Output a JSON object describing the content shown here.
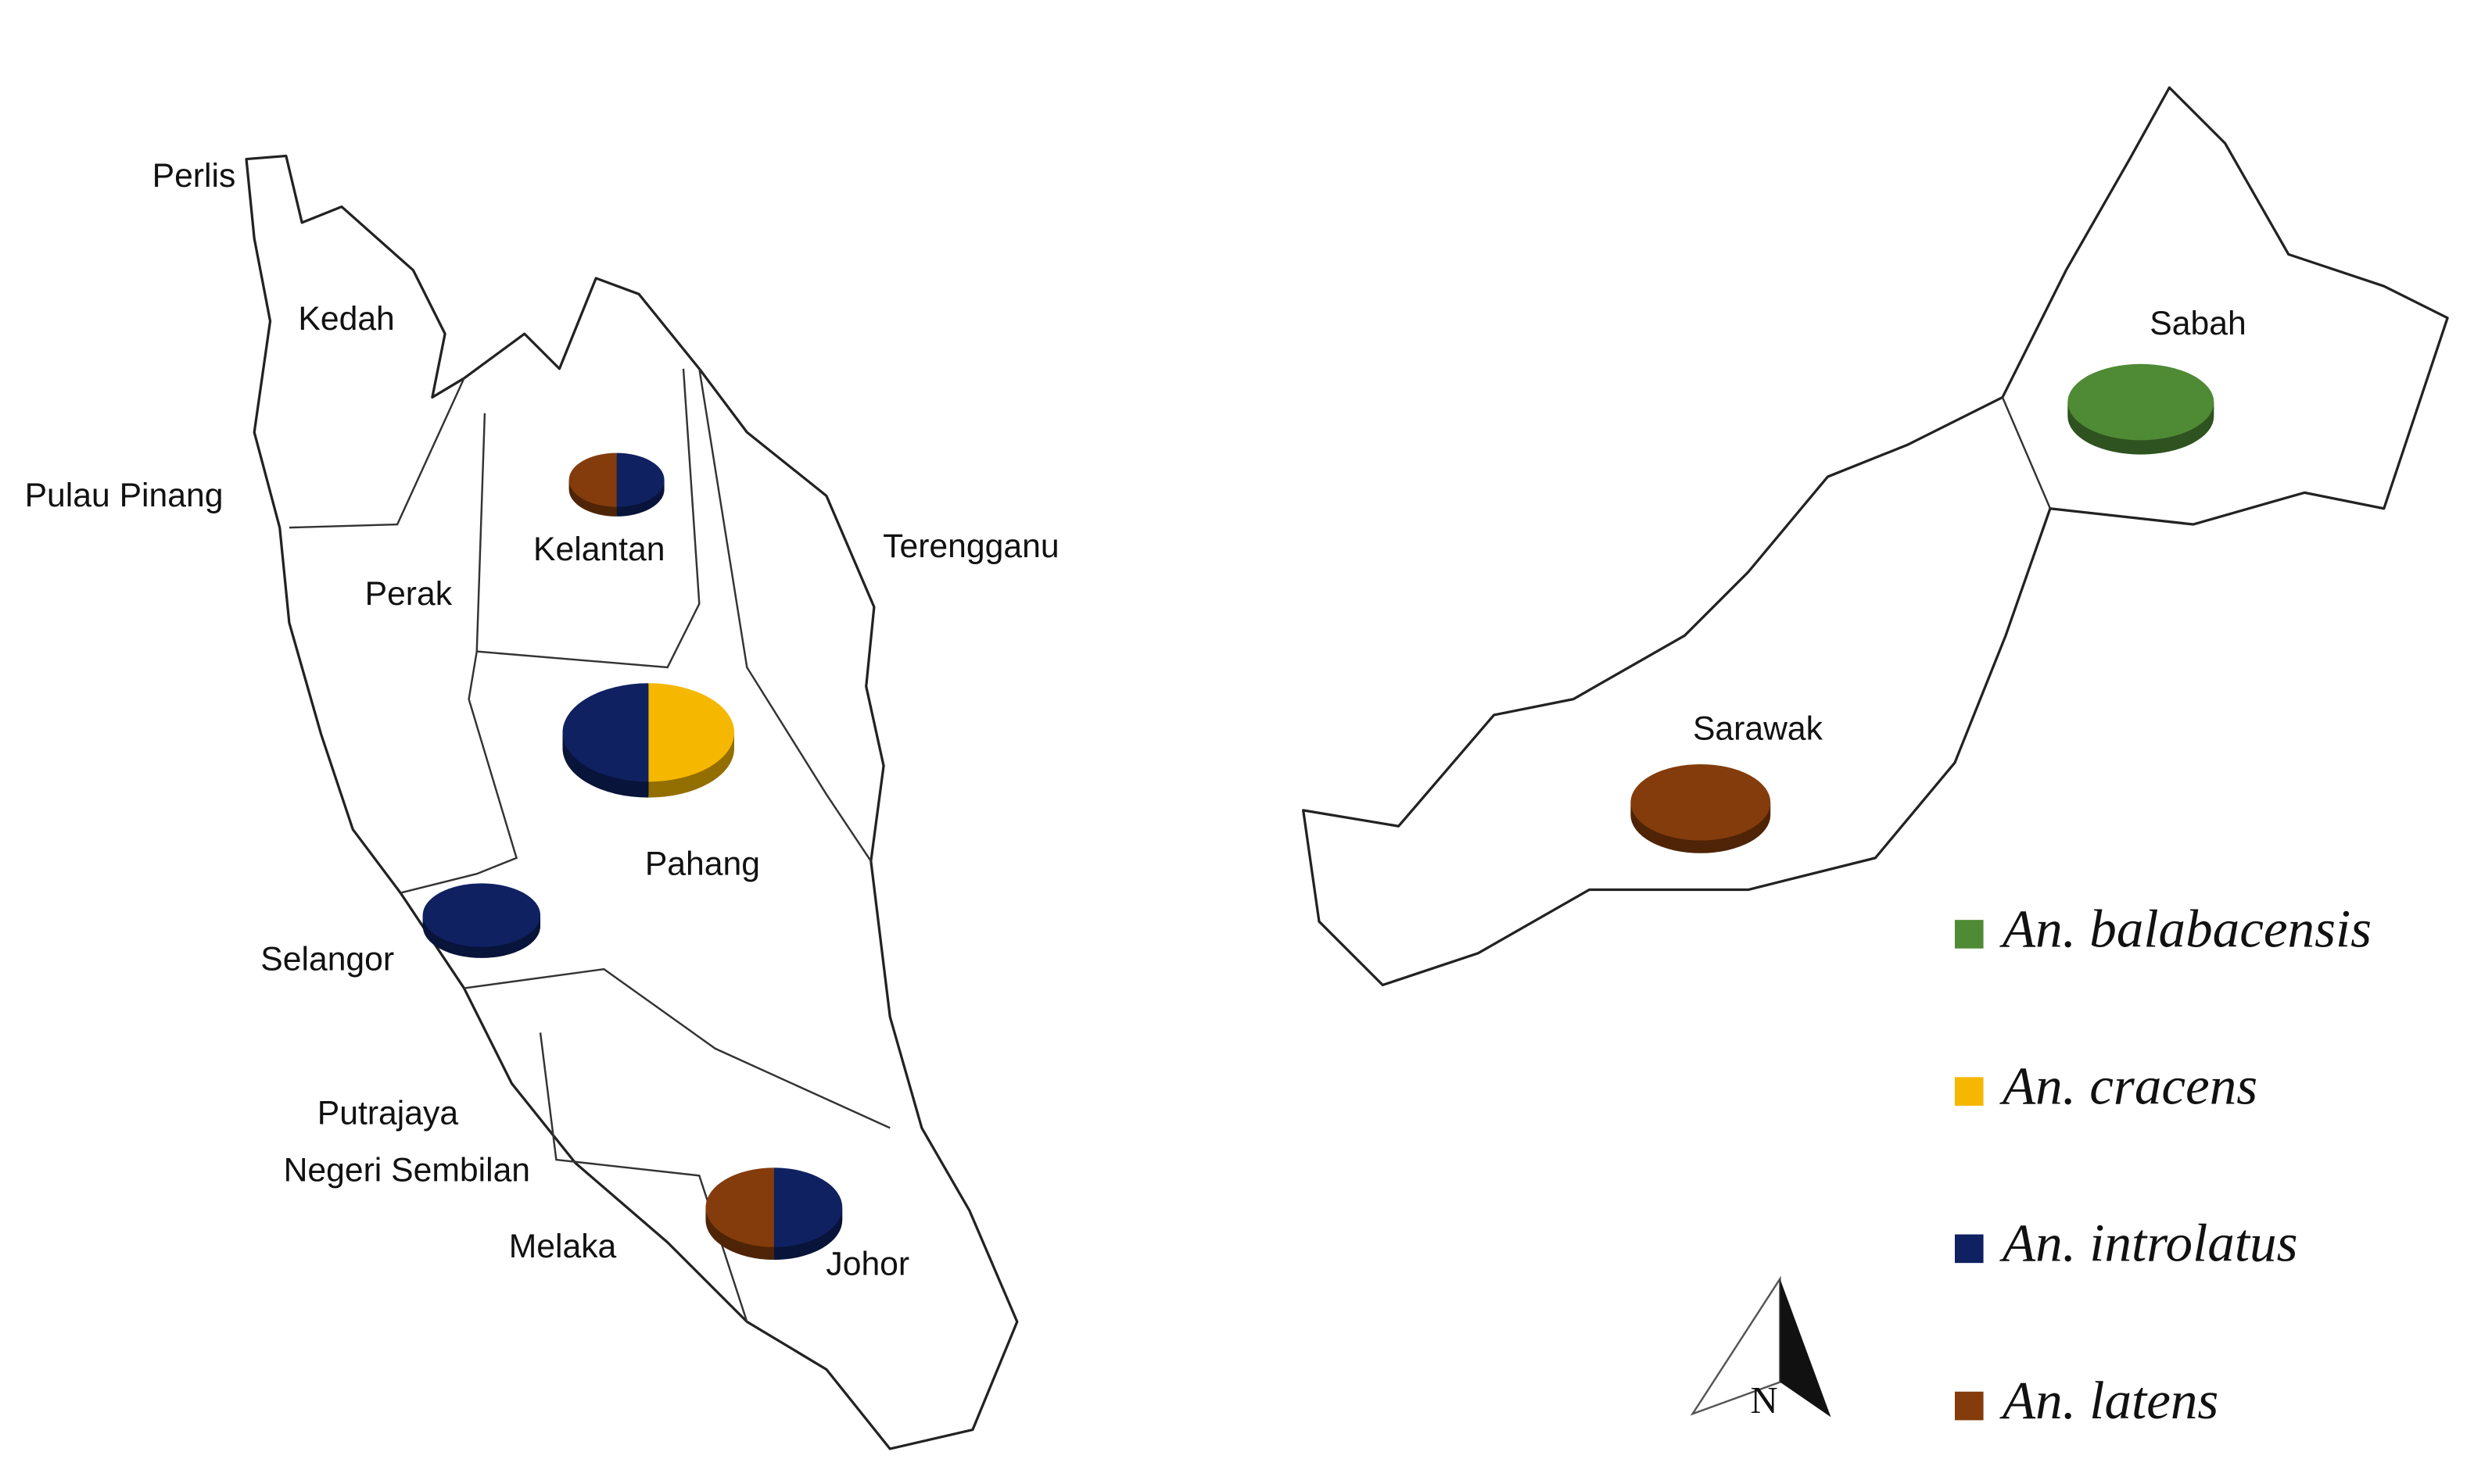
{
  "regions": [
    "Perlis",
    "Kedah",
    "Pulau Pinang",
    "Perak",
    "Kelantan",
    "Terengganu",
    "Pahang",
    "Selangor",
    "Putrajaya",
    "Negeri Sembilan",
    "Melaka",
    "Johor",
    "Sabah",
    "Sarawak"
  ],
  "legend": [
    {
      "name": "An. balabacensis",
      "color": "#4f8a35"
    },
    {
      "name": "An. cracens",
      "color": "#f5b700"
    },
    {
      "name": "An. introlatus",
      "color": "#0f2161"
    },
    {
      "name": "An. latens",
      "color": "#843c0c"
    }
  ],
  "pies": [
    {
      "slices": [
        {
          "value": 50,
          "color": "#0f2161"
        },
        {
          "value": 50,
          "color": "#843c0c"
        }
      ]
    },
    {
      "slices": [
        {
          "value": 50,
          "color": "#f5b700"
        },
        {
          "value": 50,
          "color": "#0f2161"
        }
      ]
    },
    {
      "slices": [
        {
          "value": 100,
          "color": "#0f2161"
        }
      ]
    },
    {
      "slices": [
        {
          "value": 50,
          "color": "#0f2161"
        },
        {
          "value": 50,
          "color": "#843c0c"
        }
      ]
    },
    {
      "slices": [
        {
          "value": 100,
          "color": "#4f8a35"
        }
      ]
    },
    {
      "slices": [
        {
          "value": 100,
          "color": "#843c0c"
        }
      ]
    }
  ],
  "north": "N"
}
